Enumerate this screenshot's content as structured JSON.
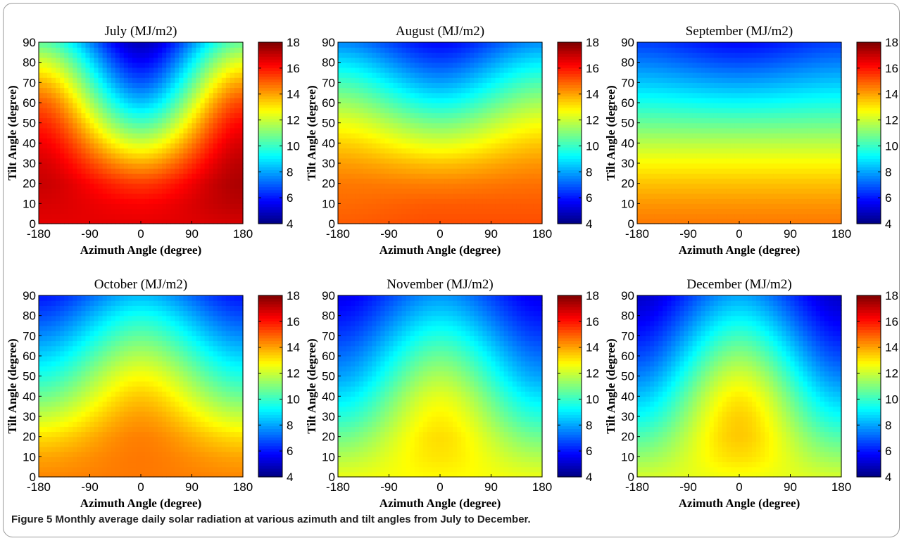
{
  "figure": {
    "caption_label": "Figure 5",
    "caption_text": "Monthly average daily solar radiation at various azimuth and tilt angles from July to December."
  },
  "chart_data": [
    {
      "type": "heatmap",
      "title": "July (MJ/m2)",
      "xlabel": "Azimuth Angle (degree)",
      "ylabel": "Tilt Angle (degree)",
      "xlim": [
        -180,
        180
      ],
      "ylim": [
        0,
        90
      ],
      "xticks": [
        "-180",
        "-90",
        "0",
        "90",
        "180"
      ],
      "yticks": [
        "0",
        "10",
        "20",
        "30",
        "40",
        "50",
        "60",
        "70",
        "80",
        "90"
      ],
      "colorbar": {
        "min": 4,
        "max": 18,
        "ticks": [
          "4",
          "6",
          "8",
          "10",
          "12",
          "14",
          "16",
          "18"
        ],
        "colormap": "jet"
      },
      "x": [
        -180,
        0,
        180
      ],
      "y": [
        0,
        10,
        20,
        30,
        40,
        50,
        60,
        70,
        80,
        90
      ],
      "z": [
        [
          16.6,
          16.8,
          17.0,
          16.8,
          16.4,
          15.8,
          15.0,
          13.8,
          12.3,
          10.5
        ],
        [
          16.6,
          16.3,
          15.5,
          14.0,
          12.2,
          10.3,
          8.5,
          7.0,
          5.8,
          4.8
        ],
        [
          16.8,
          17.2,
          17.4,
          17.2,
          16.8,
          16.2,
          15.3,
          14.0,
          12.4,
          10.6
        ]
      ]
    },
    {
      "type": "heatmap",
      "title": "August (MJ/m2)",
      "xlabel": "Azimuth Angle (degree)",
      "ylabel": "Tilt Angle (degree)",
      "xlim": [
        -180,
        180
      ],
      "ylim": [
        0,
        90
      ],
      "xticks": [
        "-180",
        "-90",
        "0",
        "90",
        "180"
      ],
      "yticks": [
        "0",
        "10",
        "20",
        "30",
        "40",
        "50",
        "60",
        "70",
        "80",
        "90"
      ],
      "colorbar": {
        "min": 4,
        "max": 18,
        "ticks": [
          "4",
          "6",
          "8",
          "10",
          "12",
          "14",
          "16",
          "18"
        ],
        "colormap": "jet"
      },
      "x": [
        -180,
        0,
        180
      ],
      "y": [
        0,
        10,
        20,
        30,
        40,
        50,
        60,
        70,
        80,
        90
      ],
      "z": [
        [
          15.0,
          14.8,
          14.6,
          14.1,
          13.4,
          12.5,
          11.4,
          10.2,
          8.9,
          7.6
        ],
        [
          15.2,
          15.0,
          14.5,
          13.6,
          12.3,
          10.9,
          9.4,
          8.0,
          6.8,
          5.8
        ],
        [
          15.2,
          15.0,
          14.7,
          14.2,
          13.5,
          12.6,
          11.5,
          10.3,
          9.0,
          7.7
        ]
      ]
    },
    {
      "type": "heatmap",
      "title": "September (MJ/m2)",
      "xlabel": "Azimuth Angle (degree)",
      "ylabel": "Tilt Angle (degree)",
      "xlim": [
        -180,
        180
      ],
      "ylim": [
        0,
        90
      ],
      "xticks": [
        "-180",
        "-90",
        "0",
        "90",
        "180"
      ],
      "yticks": [
        "0",
        "10",
        "20",
        "30",
        "40",
        "50",
        "60",
        "70",
        "80",
        "90"
      ],
      "colorbar": {
        "min": 4,
        "max": 18,
        "ticks": [
          "4",
          "6",
          "8",
          "10",
          "12",
          "14",
          "16",
          "18"
        ],
        "colormap": "jet"
      },
      "x": [
        -180,
        0,
        180
      ],
      "y": [
        0,
        10,
        20,
        30,
        40,
        50,
        60,
        70,
        80,
        90
      ],
      "z": [
        [
          14.6,
          14.2,
          13.6,
          12.8,
          11.8,
          10.7,
          9.6,
          8.5,
          7.5,
          6.6
        ],
        [
          14.6,
          14.2,
          13.6,
          12.8,
          11.8,
          10.6,
          9.3,
          8.0,
          6.8,
          5.8
        ],
        [
          14.6,
          14.2,
          13.6,
          12.8,
          11.8,
          10.7,
          9.6,
          8.5,
          7.5,
          6.6
        ]
      ]
    },
    {
      "type": "heatmap",
      "title": "October (MJ/m2)",
      "xlabel": "Azimuth Angle (degree)",
      "ylabel": "Tilt Angle (degree)",
      "xlim": [
        -180,
        180
      ],
      "ylim": [
        0,
        90
      ],
      "xticks": [
        "-180",
        "-90",
        "0",
        "90",
        "180"
      ],
      "yticks": [
        "0",
        "10",
        "20",
        "30",
        "40",
        "50",
        "60",
        "70",
        "80",
        "90"
      ],
      "colorbar": {
        "min": 4,
        "max": 18,
        "ticks": [
          "4",
          "6",
          "8",
          "10",
          "12",
          "14",
          "16",
          "18"
        ],
        "colormap": "jet"
      },
      "x": [
        -180,
        0,
        180
      ],
      "y": [
        0,
        10,
        20,
        30,
        40,
        50,
        60,
        70,
        80,
        90
      ],
      "z": [
        [
          14.4,
          14.0,
          13.2,
          12.0,
          10.8,
          9.7,
          8.7,
          7.7,
          6.8,
          6.0
        ],
        [
          14.6,
          14.6,
          14.5,
          14.1,
          13.5,
          12.7,
          11.7,
          10.6,
          9.5,
          8.3
        ],
        [
          14.4,
          14.0,
          13.2,
          12.0,
          10.8,
          9.7,
          8.7,
          7.7,
          6.8,
          6.0
        ]
      ]
    },
    {
      "type": "heatmap",
      "title": "November (MJ/m2)",
      "xlabel": "Azimuth Angle (degree)",
      "ylabel": "Tilt Angle (degree)",
      "xlim": [
        -180,
        180
      ],
      "ylim": [
        0,
        90
      ],
      "xticks": [
        "-180",
        "-90",
        "0",
        "90",
        "180"
      ],
      "yticks": [
        "0",
        "10",
        "20",
        "30",
        "40",
        "50",
        "60",
        "70",
        "80",
        "90"
      ],
      "colorbar": {
        "min": 4,
        "max": 18,
        "ticks": [
          "4",
          "6",
          "8",
          "10",
          "12",
          "14",
          "16",
          "18"
        ],
        "colormap": "jet"
      },
      "x": [
        -180,
        0,
        180
      ],
      "y": [
        0,
        10,
        20,
        30,
        40,
        50,
        60,
        70,
        80,
        90
      ],
      "z": [
        [
          12.5,
          11.7,
          10.8,
          9.8,
          8.9,
          8.0,
          7.3,
          6.6,
          6.0,
          5.5
        ],
        [
          12.8,
          13.1,
          13.2,
          12.9,
          12.4,
          11.6,
          10.7,
          9.7,
          8.7,
          7.8
        ],
        [
          12.5,
          11.7,
          10.8,
          9.8,
          8.9,
          8.0,
          7.3,
          6.6,
          6.0,
          5.5
        ]
      ]
    },
    {
      "type": "heatmap",
      "title": "December (MJ/m2)",
      "xlabel": "Azimuth Angle (degree)",
      "ylabel": "Tilt Angle (degree)",
      "xlim": [
        -180,
        180
      ],
      "ylim": [
        0,
        90
      ],
      "xticks": [
        "-180",
        "-90",
        "0",
        "90",
        "180"
      ],
      "yticks": [
        "0",
        "10",
        "20",
        "30",
        "40",
        "50",
        "60",
        "70",
        "80",
        "90"
      ],
      "colorbar": {
        "min": 4,
        "max": 18,
        "ticks": [
          "4",
          "6",
          "8",
          "10",
          "12",
          "14",
          "16",
          "18"
        ],
        "colormap": "jet"
      },
      "x": [
        -180,
        0,
        180
      ],
      "y": [
        0,
        10,
        20,
        30,
        40,
        50,
        60,
        70,
        80,
        90
      ],
      "z": [
        [
          12.2,
          11.3,
          10.4,
          9.4,
          8.5,
          7.6,
          6.8,
          6.1,
          5.5,
          5.0
        ],
        [
          12.6,
          13.2,
          13.5,
          13.4,
          13.0,
          12.2,
          11.2,
          10.1,
          9.0,
          8.0
        ],
        [
          12.2,
          11.3,
          10.4,
          9.4,
          8.5,
          7.6,
          6.8,
          6.1,
          5.5,
          5.0
        ]
      ]
    }
  ]
}
